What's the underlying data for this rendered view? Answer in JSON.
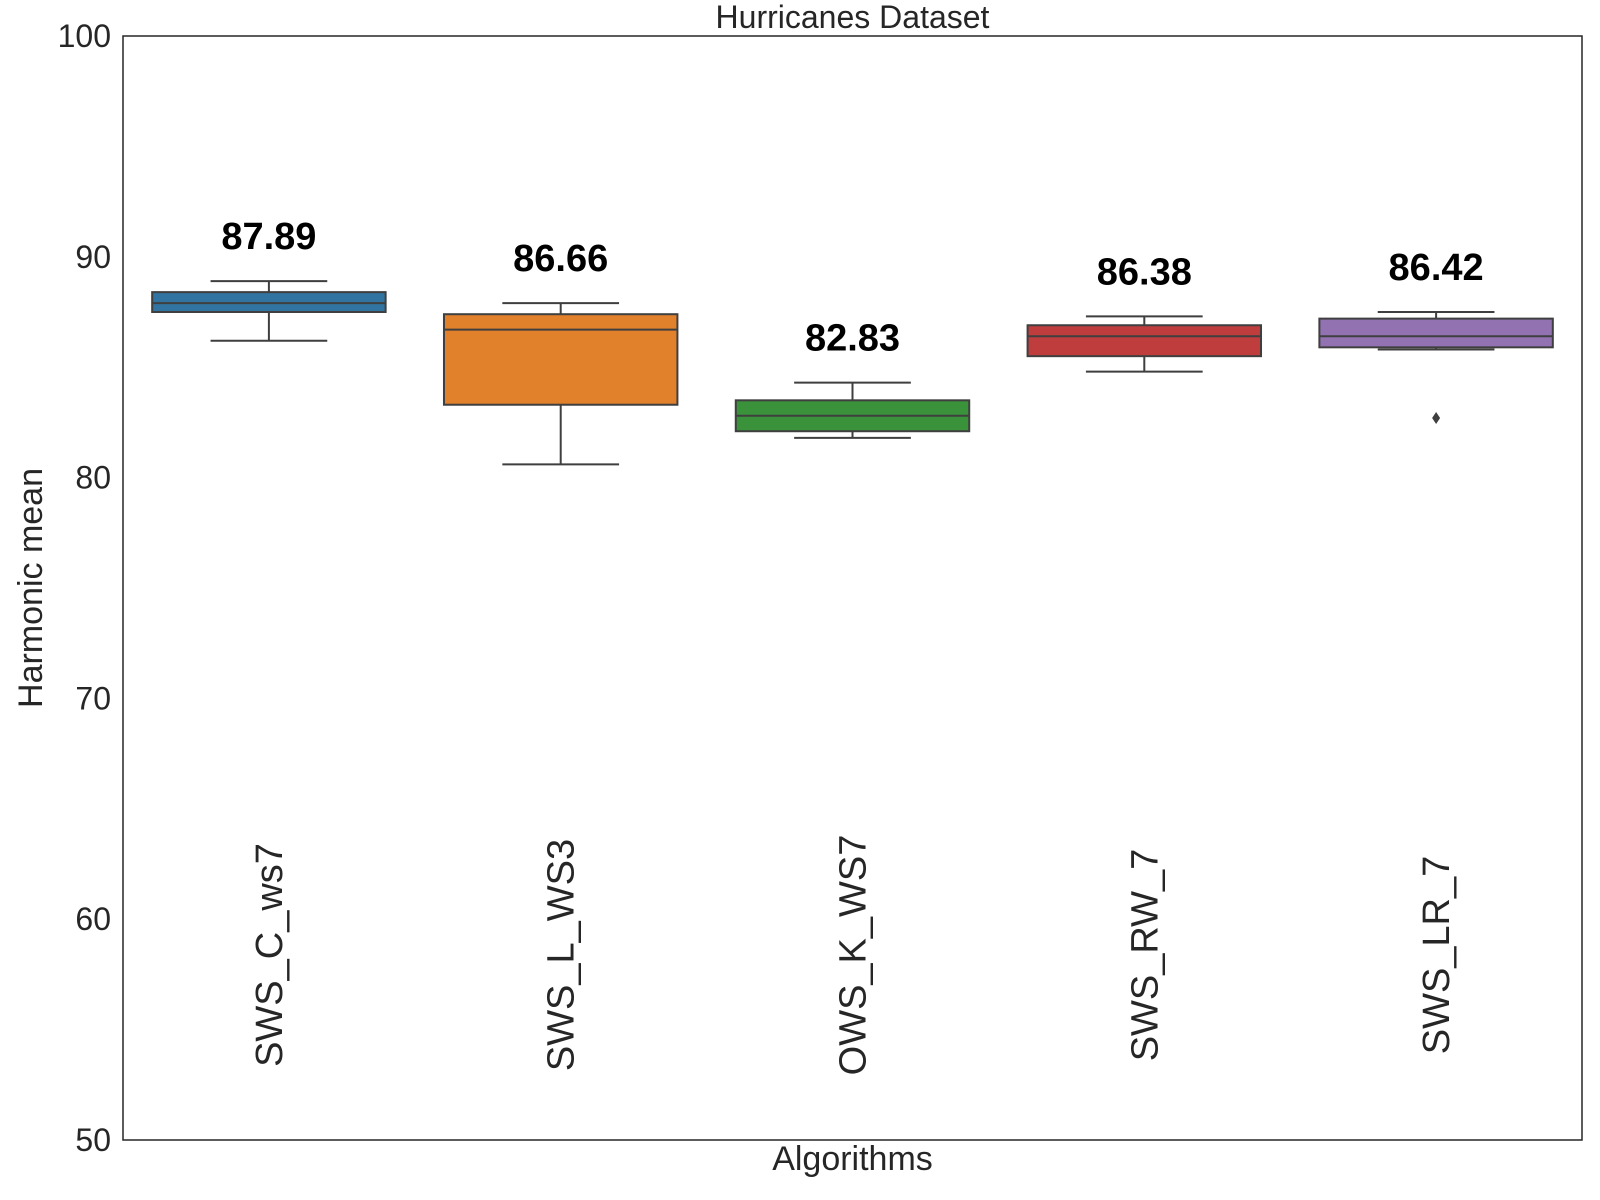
{
  "chart_data": {
    "type": "box",
    "title": "Hurricanes Dataset",
    "xlabel": "Algorithms",
    "ylabel": "Harmonic mean",
    "ylim": [
      50,
      100
    ],
    "yticks": [
      "50",
      "60",
      "70",
      "80",
      "90",
      "100"
    ],
    "grid": false,
    "categories": [
      "SWS_C_ws7",
      "SWS_L_WS3",
      "OWS_K_WS7",
      "SWS_RW_7",
      "SWS_LR_7"
    ],
    "colors": [
      "#3274a1",
      "#e1812c",
      "#3a923a",
      "#c03d3e",
      "#9372b2"
    ],
    "boxes": [
      {
        "min": 86.2,
        "q1": 87.5,
        "median": 87.9,
        "q3": 88.4,
        "max": 88.9,
        "outliers": [],
        "annotation": "87.89"
      },
      {
        "min": 80.6,
        "q1": 83.3,
        "median": 86.7,
        "q3": 87.4,
        "max": 87.9,
        "outliers": [],
        "annotation": "86.66"
      },
      {
        "min": 81.8,
        "q1": 82.1,
        "median": 82.8,
        "q3": 83.5,
        "max": 84.3,
        "outliers": [],
        "annotation": "82.83"
      },
      {
        "min": 84.8,
        "q1": 85.5,
        "median": 86.4,
        "q3": 86.9,
        "max": 87.3,
        "outliers": [],
        "annotation": "86.38"
      },
      {
        "min": 85.8,
        "q1": 85.9,
        "median": 86.4,
        "q3": 87.2,
        "max": 87.5,
        "outliers": [
          82.7
        ],
        "annotation": "86.42"
      }
    ]
  }
}
